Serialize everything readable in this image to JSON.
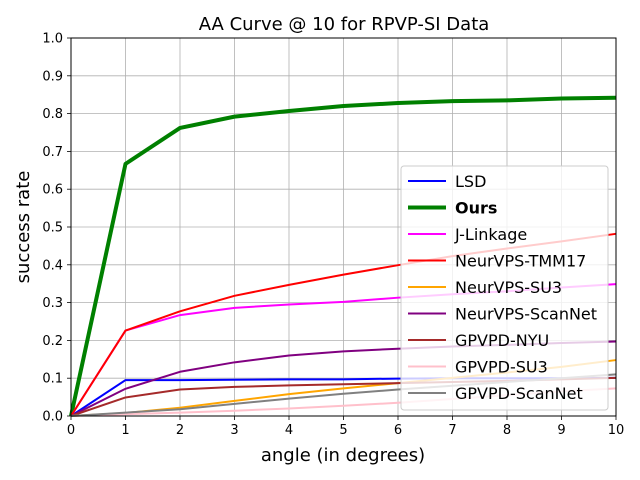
{
  "chart_data": {
    "type": "line",
    "title": "AA Curve @ 10 for RPVP-SI Data",
    "xlabel": "angle (in degrees)",
    "ylabel": "success rate",
    "xlim": [
      0,
      10
    ],
    "ylim": [
      0,
      1.0
    ],
    "x_ticks": [
      "0",
      "1",
      "2",
      "3",
      "4",
      "5",
      "6",
      "7",
      "8",
      "9",
      "10"
    ],
    "y_ticks": [
      "0.0",
      "0.1",
      "0.2",
      "0.3",
      "0.4",
      "0.5",
      "0.6",
      "0.7",
      "0.8",
      "0.9",
      "1.0"
    ],
    "grid": true,
    "legend_position": "center-right",
    "x": [
      0,
      1,
      2,
      3,
      4,
      5,
      6,
      7,
      8,
      9,
      10
    ],
    "series": [
      {
        "name": "LSD",
        "color": "#0000ff",
        "bold": false,
        "values": [
          0.0,
          0.095,
          0.095,
          0.096,
          0.097,
          0.097,
          0.099,
          0.1,
          0.1,
          0.1,
          0.101
        ]
      },
      {
        "name": "Ours",
        "color": "#008000",
        "bold": true,
        "values": [
          0.0,
          0.667,
          0.762,
          0.792,
          0.807,
          0.82,
          0.828,
          0.833,
          0.835,
          0.84,
          0.842
        ]
      },
      {
        "name": "J-Linkage",
        "color": "#ff00ff",
        "bold": false,
        "values": [
          0.0,
          0.226,
          0.267,
          0.286,
          0.295,
          0.302,
          0.313,
          0.322,
          0.33,
          0.34,
          0.349
        ]
      },
      {
        "name": "NeurVPS-TMM17",
        "color": "#ff0000",
        "bold": false,
        "values": [
          0.0,
          0.226,
          0.277,
          0.318,
          0.347,
          0.374,
          0.399,
          0.423,
          0.443,
          0.462,
          0.482
        ]
      },
      {
        "name": "NeurVPS-SU3",
        "color": "#ffa500",
        "bold": false,
        "values": [
          0.0,
          0.008,
          0.022,
          0.04,
          0.058,
          0.073,
          0.087,
          0.101,
          0.115,
          0.13,
          0.148
        ]
      },
      {
        "name": "NeurVPS-ScanNet",
        "color": "#800080",
        "bold": false,
        "values": [
          0.0,
          0.072,
          0.117,
          0.142,
          0.16,
          0.171,
          0.178,
          0.184,
          0.188,
          0.193,
          0.197
        ]
      },
      {
        "name": "GPVPD-NYU",
        "color": "#a52a2a",
        "bold": false,
        "values": [
          0.0,
          0.049,
          0.07,
          0.077,
          0.081,
          0.084,
          0.087,
          0.09,
          0.093,
          0.097,
          0.101
        ]
      },
      {
        "name": "GPVPD-SU3",
        "color": "#ffc0cb",
        "bold": false,
        "values": [
          0.0,
          0.005,
          0.009,
          0.014,
          0.02,
          0.027,
          0.035,
          0.045,
          0.055,
          0.065,
          0.073
        ]
      },
      {
        "name": "GPVPD-ScanNet",
        "color": "#808080",
        "bold": false,
        "values": [
          0.0,
          0.009,
          0.018,
          0.032,
          0.046,
          0.059,
          0.07,
          0.08,
          0.09,
          0.1,
          0.11
        ]
      }
    ]
  }
}
